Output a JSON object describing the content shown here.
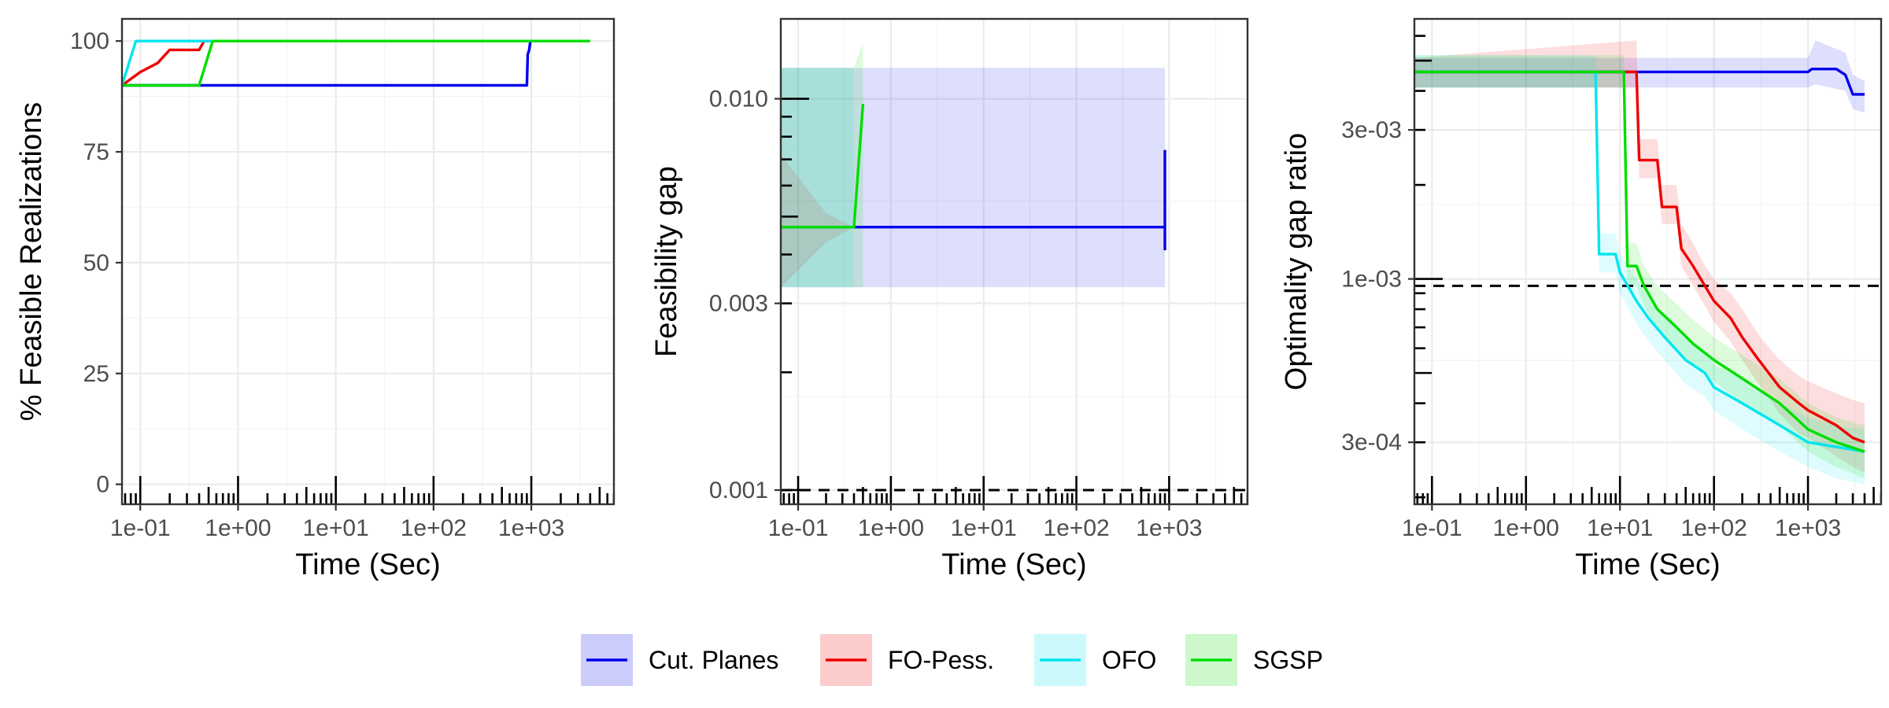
{
  "legend": {
    "entries": [
      {
        "label": "Cut. Planes",
        "color": "#0000ee"
      },
      {
        "label": "FO-Pess.",
        "color": "#ee0000"
      },
      {
        "label": "OFO",
        "color": "#00e5ee"
      },
      {
        "label": "SGSP",
        "color": "#00dd00"
      }
    ]
  },
  "chart_data": [
    {
      "type": "line",
      "xlabel": "Time (Sec)",
      "ylabel": "% Feasible Realizations",
      "x_scale": "log10",
      "xlim": [
        0.065,
        7000
      ],
      "ylim": [
        -4.5,
        105
      ],
      "x_ticks": [
        0.1,
        1,
        10,
        100,
        1000
      ],
      "x_tick_labels": [
        "1e-01",
        "1e+00",
        "1e+01",
        "1e+02",
        "1e+03"
      ],
      "y_ticks": [
        0,
        25,
        50,
        75,
        100
      ],
      "y_tick_labels": [
        "0",
        "25",
        "50",
        "75",
        "100"
      ],
      "grid": true,
      "rug_marks": true,
      "series": [
        {
          "name": "Cut. Planes",
          "color": "#0000ee",
          "points": [
            [
              0.065,
              90
            ],
            [
              900,
              90
            ],
            [
              920,
              97
            ],
            [
              950,
              98
            ],
            [
              980,
              100
            ],
            [
              1000,
              100
            ]
          ]
        },
        {
          "name": "FO-Pess.",
          "color": "#ee0000",
          "points": [
            [
              0.065,
              90
            ],
            [
              0.1,
              93
            ],
            [
              0.15,
              95
            ],
            [
              0.2,
              98
            ],
            [
              0.3,
              98
            ],
            [
              0.4,
              98
            ],
            [
              0.45,
              100
            ],
            [
              0.55,
              100
            ]
          ]
        },
        {
          "name": "OFO",
          "color": "#00e5ee",
          "points": [
            [
              0.065,
              90
            ],
            [
              0.09,
              100
            ],
            [
              0.6,
              100
            ]
          ]
        },
        {
          "name": "SGSP",
          "color": "#00dd00",
          "points": [
            [
              0.065,
              90
            ],
            [
              0.4,
              90
            ],
            [
              0.55,
              100
            ],
            [
              4000,
              100
            ]
          ]
        }
      ]
    },
    {
      "type": "line",
      "xlabel": "Time (Sec)",
      "ylabel": "Feasibility gap",
      "x_scale": "log10",
      "y_scale": "log10",
      "xlim": [
        0.065,
        7000
      ],
      "ylim": [
        0.00092,
        0.016
      ],
      "x_ticks": [
        0.1,
        1,
        10,
        100,
        1000
      ],
      "x_tick_labels": [
        "1e-01",
        "1e+00",
        "1e+01",
        "1e+02",
        "1e+03"
      ],
      "y_ticks": [
        0.001,
        0.003,
        0.01
      ],
      "y_tick_labels": [
        "0.001",
        "0.003",
        "0.010"
      ],
      "reference_line": {
        "y": 0.001,
        "style": "dashed"
      },
      "grid": true,
      "rug_marks": true,
      "series": [
        {
          "name": "Cut. Planes",
          "color": "#0000ee",
          "points": [
            [
              0.065,
              0.0047
            ],
            [
              900,
              0.0047
            ]
          ],
          "vertical_segment": {
            "x": 900,
            "y": [
              0.0041,
              0.0074
            ]
          },
          "band": [
            [
              0.065,
              0.0033,
              0.012
            ],
            [
              900,
              0.0033,
              0.012
            ]
          ]
        },
        {
          "name": "FO-Pess.",
          "color": "#ee0000",
          "points": [
            [
              0.065,
              0.0047
            ],
            [
              0.4,
              0.0047
            ]
          ],
          "band": [
            [
              0.065,
              0.0033,
              0.0072
            ],
            [
              0.2,
              0.0043,
              0.0051
            ],
            [
              0.4,
              0.0047,
              0.0047
            ]
          ]
        },
        {
          "name": "OFO",
          "color": "#00e5ee",
          "points": [
            [
              0.065,
              0.0047
            ],
            [
              0.4,
              0.0047
            ]
          ],
          "band": [
            [
              0.065,
              0.0033,
              0.012
            ],
            [
              0.4,
              0.0033,
              0.012
            ]
          ]
        },
        {
          "name": "SGSP",
          "color": "#00dd00",
          "points": [
            [
              0.065,
              0.0047
            ],
            [
              0.4,
              0.0047
            ],
            [
              0.5,
              0.0097
            ]
          ],
          "band": [
            [
              0.065,
              0.0033,
              0.012
            ],
            [
              0.4,
              0.0033,
              0.012
            ],
            [
              0.5,
              0.0033,
              0.014
            ]
          ]
        }
      ]
    },
    {
      "type": "line",
      "xlabel": "Time (Sec)",
      "ylabel": "Optimality gap ratio",
      "x_scale": "log10",
      "y_scale": "log10",
      "xlim": [
        0.065,
        6000
      ],
      "ylim": [
        0.00019,
        0.0068
      ],
      "x_ticks": [
        0.1,
        1,
        10,
        100,
        1000
      ],
      "x_tick_labels": [
        "1e-01",
        "1e+00",
        "1e+01",
        "1e+02",
        "1e+03"
      ],
      "y_ticks": [
        0.0003,
        0.001,
        0.003
      ],
      "y_tick_labels": [
        "3e-04",
        "1e-03",
        "3e-03"
      ],
      "reference_line": {
        "y": 0.00095,
        "style": "dashed"
      },
      "grid": true,
      "rug_marks": true,
      "series": [
        {
          "name": "Cut. Planes",
          "color": "#0000ee",
          "points": [
            [
              0.065,
              0.0046
            ],
            [
              1000,
              0.0046
            ],
            [
              1100,
              0.0047
            ],
            [
              2000,
              0.0047
            ],
            [
              2500,
              0.0045
            ],
            [
              3000,
              0.0039
            ],
            [
              4000,
              0.0039
            ]
          ],
          "band": [
            [
              0.065,
              0.0041,
              0.0051
            ],
            [
              1000,
              0.0041,
              0.0051
            ],
            [
              1200,
              0.0042,
              0.0058
            ],
            [
              2500,
              0.004,
              0.0053
            ],
            [
              3000,
              0.0035,
              0.0045
            ],
            [
              4000,
              0.0034,
              0.0043
            ]
          ]
        },
        {
          "name": "FO-Pess.",
          "color": "#ee0000",
          "points": [
            [
              0.065,
              0.0046
            ],
            [
              15,
              0.0046
            ],
            [
              16,
              0.0024
            ],
            [
              25,
              0.0024
            ],
            [
              28,
              0.0017
            ],
            [
              40,
              0.0017
            ],
            [
              45,
              0.00125
            ],
            [
              60,
              0.0011
            ],
            [
              80,
              0.00095
            ],
            [
              100,
              0.00085
            ],
            [
              150,
              0.00075
            ],
            [
              200,
              0.00065
            ],
            [
              300,
              0.00055
            ],
            [
              500,
              0.00045
            ],
            [
              800,
              0.0004
            ],
            [
              1000,
              0.00038
            ],
            [
              2000,
              0.00034
            ],
            [
              3000,
              0.00031
            ],
            [
              4000,
              0.0003
            ]
          ],
          "band": [
            [
              0.065,
              0.0041,
              0.0051
            ],
            [
              15,
              0.0041,
              0.0058
            ],
            [
              16,
              0.0021,
              0.0028
            ],
            [
              25,
              0.0021,
              0.0028
            ],
            [
              28,
              0.0015,
              0.002
            ],
            [
              40,
              0.0015,
              0.002
            ],
            [
              45,
              0.0011,
              0.0015
            ],
            [
              60,
              0.00095,
              0.0013
            ],
            [
              80,
              0.00082,
              0.0011
            ],
            [
              100,
              0.00073,
              0.001
            ],
            [
              150,
              0.00063,
              0.0009
            ],
            [
              200,
              0.00055,
              0.0008
            ],
            [
              300,
              0.00046,
              0.00066
            ],
            [
              500,
              0.00037,
              0.00055
            ],
            [
              800,
              0.00032,
              0.00049
            ],
            [
              1000,
              0.00031,
              0.00047
            ],
            [
              2000,
              0.00027,
              0.00043
            ],
            [
              3000,
              0.00025,
              0.00041
            ],
            [
              4000,
              0.00024,
              0.0004
            ]
          ]
        },
        {
          "name": "OFO",
          "color": "#00e5ee",
          "points": [
            [
              0.065,
              0.0046
            ],
            [
              5.5,
              0.0046
            ],
            [
              6,
              0.0012
            ],
            [
              9,
              0.0012
            ],
            [
              10,
              0.00105
            ],
            [
              15,
              0.00085
            ],
            [
              20,
              0.00075
            ],
            [
              30,
              0.00065
            ],
            [
              50,
              0.00055
            ],
            [
              80,
              0.0005
            ],
            [
              100,
              0.00045
            ],
            [
              200,
              0.0004
            ],
            [
              500,
              0.00034
            ],
            [
              1000,
              0.0003
            ],
            [
              2000,
              0.00029
            ],
            [
              4000,
              0.00028
            ]
          ],
          "band": [
            [
              0.065,
              0.0041,
              0.0052
            ],
            [
              5.5,
              0.0041,
              0.0052
            ],
            [
              6,
              0.00105,
              0.0014
            ],
            [
              9,
              0.00105,
              0.0014
            ],
            [
              10,
              0.0009,
              0.0012
            ],
            [
              15,
              0.00072,
              0.001
            ],
            [
              20,
              0.00063,
              0.00088
            ],
            [
              30,
              0.00055,
              0.00076
            ],
            [
              50,
              0.00046,
              0.00065
            ],
            [
              80,
              0.00042,
              0.00059
            ],
            [
              100,
              0.00038,
              0.00053
            ],
            [
              200,
              0.00033,
              0.00048
            ],
            [
              500,
              0.00028,
              0.0004
            ],
            [
              1000,
              0.00025,
              0.00036
            ],
            [
              2000,
              0.00023,
              0.00034
            ],
            [
              4000,
              0.00022,
              0.00033
            ]
          ]
        },
        {
          "name": "SGSP",
          "color": "#00dd00",
          "points": [
            [
              0.065,
              0.0046
            ],
            [
              11,
              0.0046
            ],
            [
              12,
              0.0011
            ],
            [
              15,
              0.0011
            ],
            [
              18,
              0.00095
            ],
            [
              25,
              0.0008
            ],
            [
              40,
              0.0007
            ],
            [
              60,
              0.00062
            ],
            [
              100,
              0.00055
            ],
            [
              200,
              0.00048
            ],
            [
              500,
              0.0004
            ],
            [
              1000,
              0.00033
            ],
            [
              2000,
              0.0003
            ],
            [
              4000,
              0.00028
            ]
          ],
          "band": [
            [
              0.065,
              0.0041,
              0.0052
            ],
            [
              11,
              0.0041,
              0.0052
            ],
            [
              12,
              0.00095,
              0.0013
            ],
            [
              15,
              0.00095,
              0.0013
            ],
            [
              18,
              0.00082,
              0.0011
            ],
            [
              25,
              0.00068,
              0.00095
            ],
            [
              40,
              0.0006,
              0.00083
            ],
            [
              60,
              0.00053,
              0.00074
            ],
            [
              100,
              0.00047,
              0.00065
            ],
            [
              200,
              0.0004,
              0.00057
            ],
            [
              500,
              0.00034,
              0.00048
            ],
            [
              1000,
              0.00028,
              0.0004
            ],
            [
              2000,
              0.00025,
              0.00036
            ],
            [
              4000,
              0.00023,
              0.00034
            ]
          ]
        }
      ]
    }
  ]
}
